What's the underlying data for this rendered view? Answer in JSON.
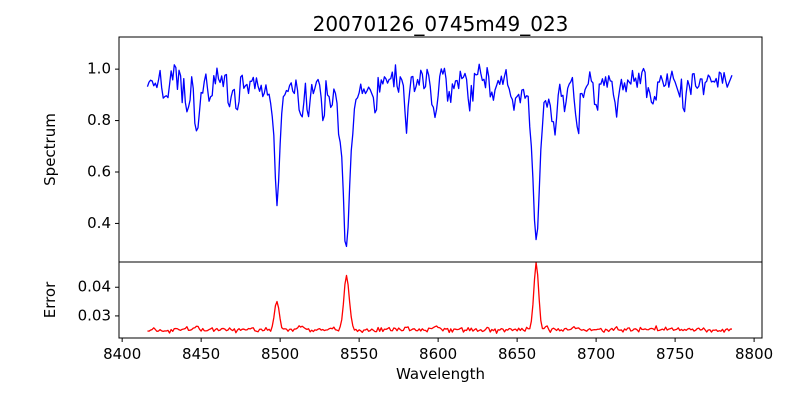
{
  "chart_data": {
    "type": "line",
    "title": "20070126_0745m49_023",
    "xlabel": "Wavelength",
    "xlim": [
      8398,
      8805
    ],
    "xticks": [
      8400,
      8450,
      8500,
      8550,
      8600,
      8650,
      8700,
      8750,
      8800
    ],
    "x_start": 8416,
    "x_end": 8786,
    "x_step": 1,
    "grid": false,
    "legend": "none",
    "panels": [
      {
        "name": "spectrum",
        "ylabel": "Spectrum",
        "ylim": [
          0.25,
          1.125
        ],
        "yticks": [
          0.4,
          0.6,
          0.8,
          1.0
        ],
        "ytick_decimals": 1,
        "color": "#0000ff",
        "continuum": 0.955,
        "noise_amplitude": 0.026,
        "spike_chance": 0.1,
        "spike_amplitude": 0.055,
        "noise_seed": 7,
        "absorption_lines": [
          {
            "center": 8498.0,
            "depth": 0.4,
            "sigma": 1.6,
            "wing_depth": 0.08,
            "wing_sigma": 5.0
          },
          {
            "center": 8542.1,
            "depth": 0.52,
            "sigma": 2.0,
            "wing_depth": 0.13,
            "wing_sigma": 7.0
          },
          {
            "center": 8662.1,
            "depth": 0.51,
            "sigma": 1.9,
            "wing_depth": 0.13,
            "wing_sigma": 6.5
          }
        ],
        "minor_lines": [
          {
            "center": 8428.0,
            "depth": 0.07,
            "sigma": 1.2
          },
          {
            "center": 8441.0,
            "depth": 0.17,
            "sigma": 1.3
          },
          {
            "center": 8447.0,
            "depth": 0.2,
            "sigma": 1.4
          },
          {
            "center": 8456.0,
            "depth": 0.09,
            "sigma": 1.1
          },
          {
            "center": 8468.0,
            "depth": 0.12,
            "sigma": 1.2
          },
          {
            "center": 8473.0,
            "depth": 0.13,
            "sigma": 1.2
          },
          {
            "center": 8513.5,
            "depth": 0.18,
            "sigma": 1.4
          },
          {
            "center": 8518.0,
            "depth": 0.12,
            "sigma": 1.1
          },
          {
            "center": 8527.0,
            "depth": 0.1,
            "sigma": 1.2
          },
          {
            "center": 8537.0,
            "depth": 0.08,
            "sigma": 1.0
          },
          {
            "center": 8560.0,
            "depth": 0.1,
            "sigma": 1.2
          },
          {
            "center": 8580.0,
            "depth": 0.14,
            "sigma": 1.4
          },
          {
            "center": 8598.0,
            "depth": 0.13,
            "sigma": 1.3
          },
          {
            "center": 8607.0,
            "depth": 0.09,
            "sigma": 1.1
          },
          {
            "center": 8621.0,
            "depth": 0.09,
            "sigma": 1.2
          },
          {
            "center": 8634.0,
            "depth": 0.08,
            "sigma": 1.1
          },
          {
            "center": 8648.0,
            "depth": 0.11,
            "sigma": 1.2
          },
          {
            "center": 8673.5,
            "depth": 0.17,
            "sigma": 1.3
          },
          {
            "center": 8680.0,
            "depth": 0.13,
            "sigma": 1.2
          },
          {
            "center": 8688.0,
            "depth": 0.21,
            "sigma": 1.4
          },
          {
            "center": 8700.0,
            "depth": 0.09,
            "sigma": 1.1
          },
          {
            "center": 8713.0,
            "depth": 0.12,
            "sigma": 1.3
          },
          {
            "center": 8736.0,
            "depth": 0.1,
            "sigma": 1.2
          },
          {
            "center": 8756.0,
            "depth": 0.11,
            "sigma": 1.2
          }
        ]
      },
      {
        "name": "error",
        "ylabel": "Error",
        "ylim": [
          0.0223,
          0.0488
        ],
        "yticks": [
          0.03,
          0.04
        ],
        "ytick_decimals": 2,
        "color": "#ff0000",
        "baseline": 0.0252,
        "noise_amplitude": 0.0004,
        "spike_chance": 0.05,
        "spike_amplitude": 0.001,
        "noise_seed": 12,
        "peaks": [
          {
            "center": 8498.0,
            "height": 0.0098,
            "sigma": 1.5
          },
          {
            "center": 8542.1,
            "height": 0.0185,
            "sigma": 1.7
          },
          {
            "center": 8662.1,
            "height": 0.0232,
            "sigma": 1.5
          },
          {
            "center": 8441.0,
            "height": 0.0008,
            "sigma": 1.2
          },
          {
            "center": 8447.0,
            "height": 0.0012,
            "sigma": 1.5
          },
          {
            "center": 8513.5,
            "height": 0.0013,
            "sigma": 1.4
          },
          {
            "center": 8580.0,
            "height": 0.0008,
            "sigma": 1.3
          },
          {
            "center": 8598.0,
            "height": 0.0008,
            "sigma": 1.3
          },
          {
            "center": 8669.0,
            "height": 0.001,
            "sigma": 1.2
          },
          {
            "center": 8688.0,
            "height": 0.0013,
            "sigma": 1.4
          },
          {
            "center": 8713.0,
            "height": 0.0007,
            "sigma": 1.2
          }
        ]
      }
    ]
  }
}
